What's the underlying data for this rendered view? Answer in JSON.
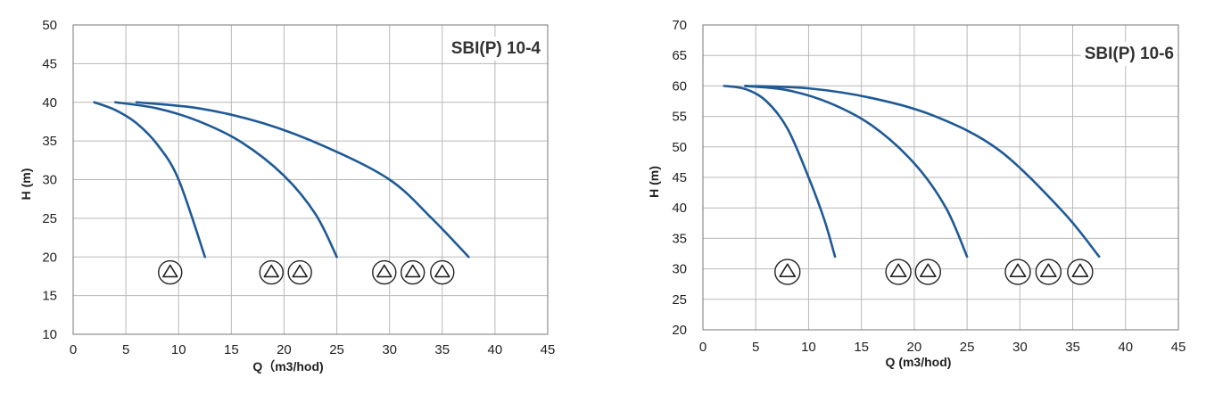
{
  "colors": {
    "curve": "#1f5a96",
    "grid": "#b8b8b8"
  },
  "chart_data": [
    {
      "type": "line",
      "title": "SBI(P) 10-4",
      "xlabel": "Q（m3/hod)",
      "ylabel": "H (m)",
      "xlim": [
        0,
        45
      ],
      "ylim": [
        10,
        50
      ],
      "x_ticks": [
        "0",
        "5",
        "10",
        "15",
        "20",
        "25",
        "30",
        "35",
        "40",
        "45"
      ],
      "y_ticks": [
        "50",
        "45",
        "40",
        "35",
        "30",
        "25",
        "20",
        "15",
        "10"
      ],
      "grid": true,
      "series": [
        {
          "x": [
            2,
            4,
            6,
            8,
            10,
            12.5
          ],
          "y": [
            40,
            39,
            37.3,
            34.5,
            30,
            20
          ]
        },
        {
          "x": [
            4,
            8,
            12,
            16,
            20,
            23,
            25
          ],
          "y": [
            40,
            39.2,
            37.5,
            34.8,
            30.5,
            25.5,
            20
          ]
        },
        {
          "x": [
            6,
            12,
            18,
            24,
            30,
            34,
            37.5
          ],
          "y": [
            40,
            39.2,
            37.3,
            34.2,
            30,
            25,
            20
          ]
        }
      ],
      "pump_symbols": [
        {
          "x": 9.2,
          "y": 18,
          "icon": "pump-icon"
        },
        {
          "x": 18.8,
          "y": 18,
          "icon": "pump-icon"
        },
        {
          "x": 21.5,
          "y": 18,
          "icon": "pump-icon"
        },
        {
          "x": 29.5,
          "y": 18,
          "icon": "pump-icon"
        },
        {
          "x": 32.2,
          "y": 18,
          "icon": "pump-icon"
        },
        {
          "x": 35,
          "y": 18,
          "icon": "pump-icon"
        }
      ]
    },
    {
      "type": "line",
      "title": "SBI(P) 10-6",
      "xlabel": "Q (m3/hod)",
      "ylabel": "H (m)",
      "xlim": [
        0,
        45
      ],
      "ylim": [
        20,
        70
      ],
      "x_ticks": [
        "0",
        "5",
        "10",
        "15",
        "20",
        "25",
        "30",
        "35",
        "40",
        "45"
      ],
      "y_ticks": [
        "70",
        "65",
        "60",
        "55",
        "50",
        "45",
        "40",
        "35",
        "30",
        "25",
        "20"
      ],
      "grid": true,
      "series": [
        {
          "x": [
            2,
            4,
            6,
            8,
            10,
            11.5,
            12.5
          ],
          "y": [
            60,
            59.5,
            57.5,
            53,
            45,
            38,
            32
          ]
        },
        {
          "x": [
            4,
            8,
            12,
            16,
            20,
            23,
            25
          ],
          "y": [
            60,
            59.3,
            57.2,
            53.5,
            47.3,
            40,
            32
          ]
        },
        {
          "x": [
            4,
            10,
            16,
            22,
            28,
            34,
            37.5
          ],
          "y": [
            60,
            59.6,
            58,
            55,
            49.5,
            39.5,
            32
          ]
        }
      ],
      "pump_symbols": [
        {
          "x": 8,
          "y": 29.5,
          "icon": "pump-icon"
        },
        {
          "x": 18.5,
          "y": 29.5,
          "icon": "pump-icon"
        },
        {
          "x": 21.3,
          "y": 29.5,
          "icon": "pump-icon"
        },
        {
          "x": 29.8,
          "y": 29.5,
          "icon": "pump-icon"
        },
        {
          "x": 32.7,
          "y": 29.5,
          "icon": "pump-icon"
        },
        {
          "x": 35.7,
          "y": 29.5,
          "icon": "pump-icon"
        }
      ]
    }
  ]
}
